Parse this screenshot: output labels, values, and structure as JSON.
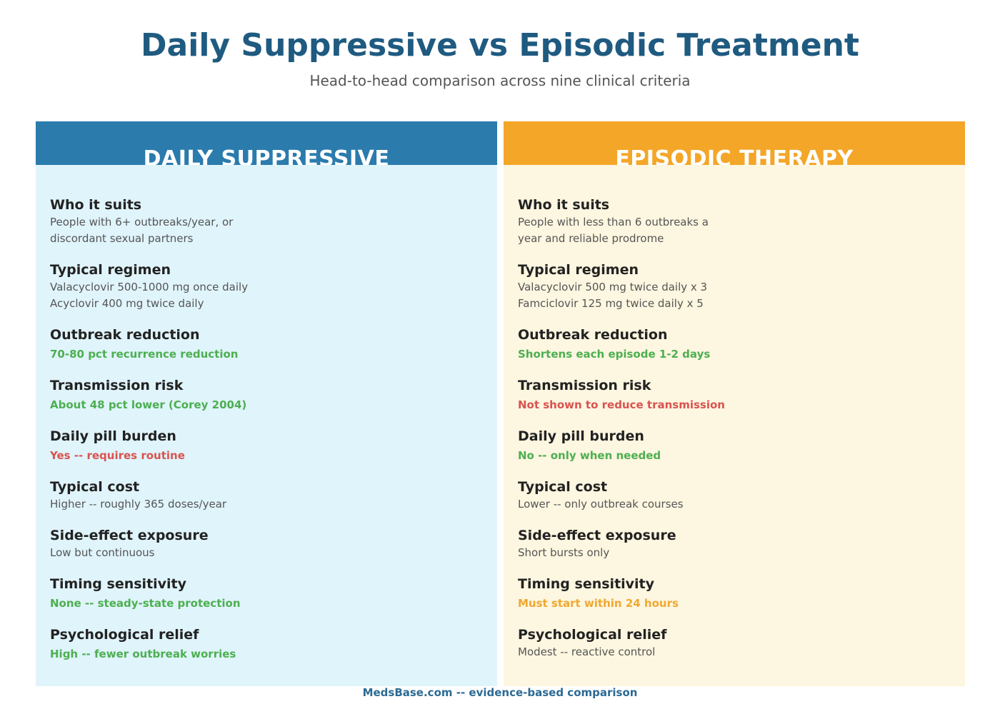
{
  "header": {
    "title": "Daily Suppressive vs Episodic Treatment",
    "subtitle": "Head-to-head comparison across nine clinical criteria"
  },
  "columns": [
    {
      "heading": "DAILY SUPPRESSIVE",
      "color": "#2b7bad",
      "background": "#e0f4fb",
      "rows": [
        {
          "label": "Who it suits",
          "lines": [
            "People with 6+ outbreaks/year, or",
            "discordant sexual partners"
          ]
        },
        {
          "label": "Typical regimen",
          "lines": [
            "Valacyclovir 500-1000 mg once daily",
            "Acyclovir 400 mg twice daily"
          ]
        },
        {
          "label": "Outbreak reduction",
          "lines": [
            "70-80 pct recurrence reduction"
          ],
          "color": "#4caf50"
        },
        {
          "label": "Transmission risk",
          "lines": [
            "About 48 pct lower (Corey 2004)"
          ],
          "color": "#4caf50"
        },
        {
          "label": "Daily pill burden",
          "lines": [
            "Yes -- requires routine"
          ],
          "color": "#d9534f"
        },
        {
          "label": "Typical cost",
          "lines": [
            "Higher -- roughly 365 doses/year"
          ]
        },
        {
          "label": "Side-effect exposure",
          "lines": [
            "Low but continuous"
          ]
        },
        {
          "label": "Timing sensitivity",
          "lines": [
            "None -- steady-state protection"
          ],
          "color": "#4caf50"
        },
        {
          "label": "Psychological relief",
          "lines": [
            "High -- fewer outbreak worries"
          ],
          "color": "#4caf50"
        }
      ]
    },
    {
      "heading": "EPISODIC THERAPY",
      "color": "#f3a628",
      "background": "#fdf6e0",
      "rows": [
        {
          "label": "Who it suits",
          "lines": [
            "People with less than 6 outbreaks a",
            "year and reliable prodrome"
          ]
        },
        {
          "label": "Typical regimen",
          "lines": [
            "Valacyclovir 500 mg twice daily x 3",
            "Famciclovir 125 mg twice daily x 5"
          ]
        },
        {
          "label": "Outbreak reduction",
          "lines": [
            "Shortens each episode 1-2 days"
          ],
          "color": "#4caf50"
        },
        {
          "label": "Transmission risk",
          "lines": [
            "Not shown to reduce transmission"
          ],
          "color": "#d9534f"
        },
        {
          "label": "Daily pill burden",
          "lines": [
            "No -- only when needed"
          ],
          "color": "#4caf50"
        },
        {
          "label": "Typical cost",
          "lines": [
            "Lower -- only outbreak courses"
          ]
        },
        {
          "label": "Side-effect exposure",
          "lines": [
            "Short bursts only"
          ]
        },
        {
          "label": "Timing sensitivity",
          "lines": [
            "Must start within 24 hours"
          ],
          "color": "#f0a830"
        },
        {
          "label": "Psychological relief",
          "lines": [
            "Modest -- reactive control"
          ]
        }
      ]
    }
  ],
  "footer": "MedsBase.com -- evidence-based comparison"
}
